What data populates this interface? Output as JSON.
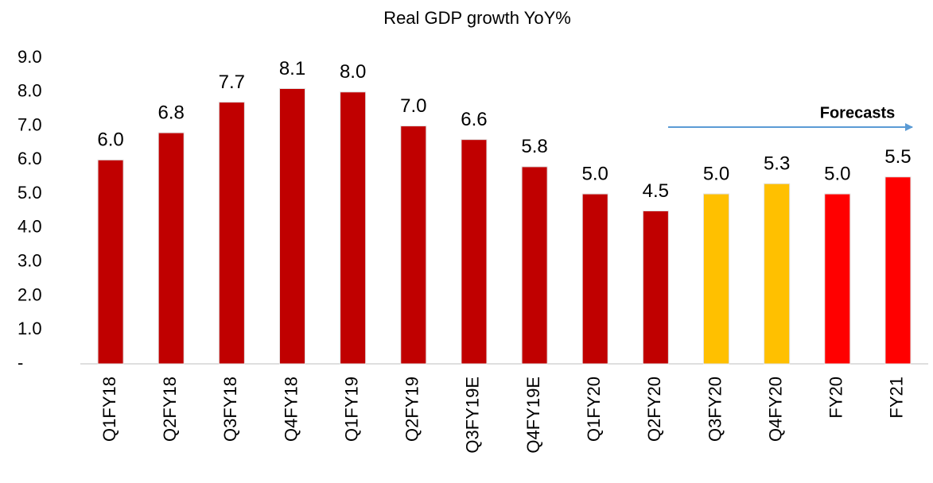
{
  "chart_data": {
    "type": "bar",
    "title": "Real GDP growth YoY%",
    "categories": [
      "Q1FY18",
      "Q2FY18",
      "Q3FY18",
      "Q4FY18",
      "Q1FY19",
      "Q2FY19",
      "Q3FY19E",
      "Q4FY19E",
      "Q1FY20",
      "Q2FY20",
      "Q3FY20",
      "Q4FY20",
      "FY20",
      "FY21"
    ],
    "values": [
      6.0,
      6.8,
      7.7,
      8.1,
      8.0,
      7.0,
      6.6,
      5.8,
      5.0,
      4.5,
      5.0,
      5.3,
      5.0,
      5.5
    ],
    "value_labels": [
      "6.0",
      "6.8",
      "7.7",
      "8.1",
      "8.0",
      "7.0",
      "6.6",
      "5.8",
      "5.0",
      "4.5",
      "5.0",
      "5.3",
      "5.0",
      "5.5"
    ],
    "colors": [
      "#c00000",
      "#c00000",
      "#c00000",
      "#c00000",
      "#c00000",
      "#c00000",
      "#c00000",
      "#c00000",
      "#c00000",
      "#c00000",
      "#ffc000",
      "#ffc000",
      "#ff0000",
      "#ff0000"
    ],
    "ylim": [
      0,
      9
    ],
    "yticks": [
      {
        "value": 0,
        "label": "-"
      },
      {
        "value": 1,
        "label": "1.0"
      },
      {
        "value": 2,
        "label": "2.0"
      },
      {
        "value": 3,
        "label": "3.0"
      },
      {
        "value": 4,
        "label": "4.0"
      },
      {
        "value": 5,
        "label": "5.0"
      },
      {
        "value": 6,
        "label": "6.0"
      },
      {
        "value": 7,
        "label": "7.0"
      },
      {
        "value": 8,
        "label": "8.0"
      },
      {
        "value": 9,
        "label": "9.0"
      }
    ],
    "grid": false,
    "annotation": "Forecasts"
  }
}
